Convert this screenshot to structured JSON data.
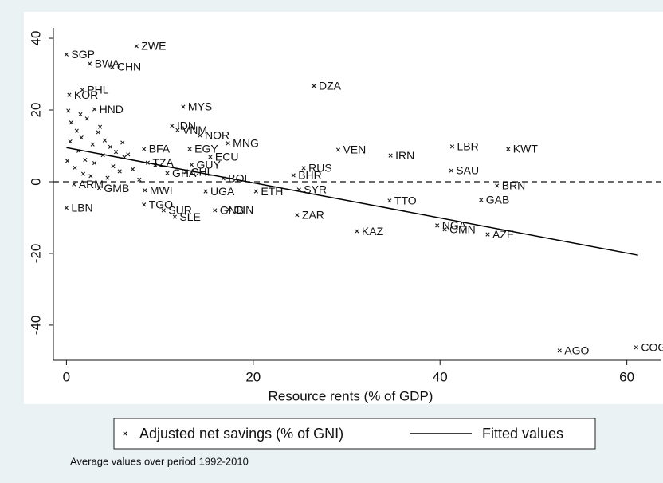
{
  "chart_data": {
    "type": "scatter",
    "x_label": "Resource rents (% of GDP)",
    "note": "Average values over period 1992-2010",
    "xlim": [
      -1.4,
      63.7
    ],
    "ylim": [
      -49.8,
      42.9
    ],
    "xticks": [
      0,
      20,
      40,
      60
    ],
    "yticks": [
      -40,
      -20,
      0,
      20,
      40
    ],
    "refline": 0,
    "series": [
      {
        "name": "Adjusted net savings (% of GNI)",
        "color": "#1a1a1a",
        "x": [
          0,
          7.5,
          2.5,
          4.9,
          26.5,
          1.7,
          0.3,
          12.5,
          3,
          11.3,
          11.9,
          14.3,
          17.3,
          13.2,
          29.1,
          34.7,
          41.3,
          47.3,
          15.4,
          13.4,
          41.2,
          25.4,
          24.3,
          16.8,
          46.1,
          20.3,
          24.9,
          44.4,
          34.6,
          14.9,
          0,
          8.3,
          10.4,
          11.6,
          15.9,
          17.4,
          24.7,
          31.1,
          39.7,
          40.5,
          45.1,
          52.8,
          61,
          3.5,
          8.4,
          10.8,
          12.8,
          8.3,
          0.8,
          8.7,
          0.2,
          0.5,
          1.1,
          1.6,
          2.2,
          2.8,
          3.4,
          4.1,
          4.7,
          5.3,
          6.0,
          6.6,
          0.4,
          1.3,
          2.0,
          3.0,
          3.9,
          5.0,
          6.2,
          7.1,
          0.1,
          0.9,
          1.8,
          2.6,
          4.4,
          5.7,
          7.8,
          9.5,
          1.5,
          3.6
        ],
        "values": [
          35.5,
          37.8,
          32.9,
          32,
          26.7,
          25.6,
          24.2,
          20.9,
          20.2,
          15.6,
          14.4,
          12.9,
          10.7,
          9.1,
          8.9,
          7.3,
          9.8,
          9.1,
          6.9,
          4.7,
          3.1,
          3.8,
          1.8,
          0.9,
          -1.1,
          -2.7,
          -2.2,
          -5.1,
          -5.3,
          -2.7,
          -7.3,
          -6.4,
          -8,
          -9.8,
          -8,
          -7.8,
          -9.3,
          -13.8,
          -12.2,
          -13.3,
          -14.7,
          -47.1,
          -46.2,
          -1.8,
          -2.4,
          2.4,
          2.7,
          9.1,
          -0.7,
          5.3,
          19.8,
          16.5,
          14.2,
          12.3,
          17.6,
          10.4,
          13.8,
          11.5,
          9.7,
          8.3,
          10.9,
          7.6,
          11.2,
          8.6,
          6.1,
          5.2,
          7.4,
          4.3,
          6.8,
          3.5,
          5.8,
          3.9,
          2.2,
          1.6,
          1.1,
          2.9,
          0.6,
          4.6,
          18.8,
          15.3
        ],
        "labels": [
          "SGP",
          "ZWE",
          "BWA",
          "CHN",
          "DZA",
          "PHL",
          "KOR",
          "MYS",
          "HND",
          "IDN",
          "VNM",
          "NOR",
          "MNG",
          "EGY",
          "VEN",
          "IRN",
          "LBR",
          "KWT",
          "ECU",
          "GUY",
          "SAU",
          "RUS",
          "BHR",
          "BOL",
          "BRN",
          "ETH",
          "SYR",
          "GAB",
          "TTO",
          "UGA",
          "LBN",
          "TGO",
          "SUR",
          "SLE",
          "GNB",
          "GIN",
          "ZAR",
          "KAZ",
          "NGA",
          "OMN",
          "AZE",
          "AGO",
          "COG",
          "GMB",
          "MWI",
          "GHA",
          "CHL",
          "BFA",
          "ARM",
          "TZA",
          null,
          null,
          null,
          null,
          null,
          null,
          null,
          null,
          null,
          null,
          null,
          null,
          null,
          null,
          null,
          null,
          null,
          null,
          null,
          null,
          null,
          null,
          null,
          null,
          null,
          null,
          null,
          null,
          null,
          null
        ]
      },
      {
        "name": "Fitted values",
        "color": "#000000",
        "line": true,
        "x": [
          0,
          61.2
        ],
        "values": [
          9.5,
          -20.5
        ]
      }
    ]
  }
}
